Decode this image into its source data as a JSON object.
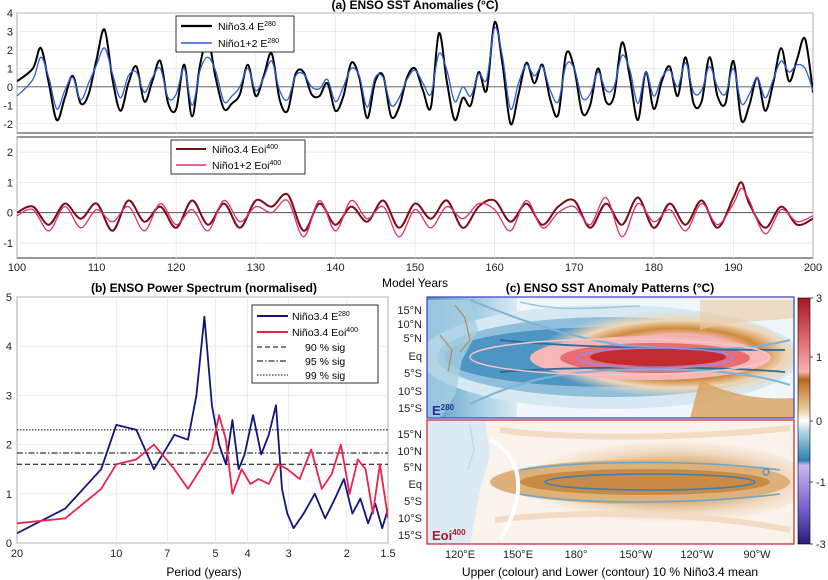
{
  "chart_data": [
    {
      "panel": "a-top",
      "type": "line",
      "title": "(a) ENSO SST Anomalies (°C)",
      "xlim": [
        100,
        200
      ],
      "ylim": [
        -2.5,
        4
      ],
      "yticks": [
        -2,
        -1,
        0,
        1,
        2,
        3,
        4
      ],
      "xticks": [
        100,
        110,
        120,
        130,
        140,
        150,
        160,
        170,
        180,
        190,
        200
      ],
      "grid": true,
      "legend": "top-left",
      "series": [
        {
          "name": "Niño3.4 E",
          "name_sup": "280",
          "color": "#000000",
          "x": [
            100,
            102,
            103,
            104,
            105,
            106,
            107,
            108,
            109,
            110,
            111,
            112,
            113,
            114,
            115,
            116,
            117,
            118,
            119,
            120,
            121,
            122,
            123,
            124,
            125,
            126,
            127,
            128,
            129,
            130,
            131,
            132,
            133,
            134,
            135,
            136,
            137,
            138,
            139,
            140,
            141,
            142,
            143,
            144,
            145,
            146,
            147,
            148,
            149,
            150,
            151,
            152,
            153,
            154,
            155,
            156,
            157,
            158,
            159,
            160,
            161,
            162,
            163,
            164,
            165,
            166,
            167,
            168,
            169,
            170,
            171,
            172,
            173,
            174,
            175,
            176,
            177,
            178,
            179,
            180,
            181,
            182,
            183,
            184,
            185,
            186,
            187,
            188,
            189,
            190,
            191,
            192,
            193,
            194,
            195,
            196,
            197,
            198,
            199,
            200
          ],
          "y": [
            0.3,
            1.0,
            2.1,
            0.2,
            -1.8,
            -0.6,
            0.6,
            -0.9,
            -0.4,
            1.5,
            3.1,
            0.4,
            -1.3,
            0.2,
            1.1,
            -0.8,
            0.3,
            1.4,
            -0.9,
            -1.2,
            1.2,
            -1.6,
            1.2,
            2.5,
            0.4,
            -1.2,
            -0.9,
            -0.4,
            1.2,
            -0.5,
            0.6,
            1.8,
            -0.7,
            -1.3,
            0.7,
            0.8,
            -0.4,
            -0.5,
            0.2,
            -1.3,
            -0.5,
            1.3,
            0.5,
            -1.7,
            0.3,
            0.6,
            -1.6,
            -1.1,
            0.5,
            1.0,
            -0.2,
            -1.1,
            2.9,
            0.3,
            -1.8,
            -0.6,
            -1.0,
            0.8,
            -0.2,
            3.5,
            1.2,
            -2.0,
            -0.4,
            1.3,
            0.2,
            1.2,
            -0.7,
            -1.5,
            1.8,
            1.0,
            -1.4,
            -1.0,
            1.0,
            -0.8,
            -0.5,
            2.4,
            0.5,
            -1.8,
            0.8,
            -1.2,
            0.3,
            1.1,
            -0.5,
            1.6,
            -0.9,
            -0.8,
            1.6,
            -0.5,
            -0.9,
            1.4,
            -1.8,
            -1.0,
            0.5,
            -1.3,
            0.2,
            2.1,
            0.3,
            1.5,
            2.6,
            -0.3
          ]
        },
        {
          "name": "Niño1+2 E",
          "name_sup": "280",
          "color": "#2c5fd6",
          "x": [
            100,
            102,
            103,
            104,
            105,
            106,
            107,
            108,
            109,
            110,
            111,
            112,
            113,
            114,
            115,
            116,
            117,
            118,
            119,
            120,
            121,
            122,
            123,
            124,
            125,
            126,
            127,
            128,
            129,
            130,
            131,
            132,
            133,
            134,
            135,
            136,
            137,
            138,
            139,
            140,
            141,
            142,
            143,
            144,
            145,
            146,
            147,
            148,
            149,
            150,
            151,
            152,
            153,
            154,
            155,
            156,
            157,
            158,
            159,
            160,
            161,
            162,
            163,
            164,
            165,
            166,
            167,
            168,
            169,
            170,
            171,
            172,
            173,
            174,
            175,
            176,
            177,
            178,
            179,
            180,
            181,
            182,
            183,
            184,
            185,
            186,
            187,
            188,
            189,
            190,
            191,
            192,
            193,
            194,
            195,
            196,
            197,
            198,
            199,
            200
          ],
          "y": [
            -0.5,
            0.4,
            1.6,
            0.5,
            -1.2,
            -0.2,
            0.5,
            -0.7,
            0.2,
            1.2,
            2.1,
            0.7,
            -0.6,
            0.6,
            0.8,
            -0.3,
            0.5,
            1.0,
            -0.6,
            -0.4,
            1.0,
            -1.0,
            0.9,
            1.6,
            0.8,
            -0.8,
            -0.5,
            0.0,
            1.0,
            -0.2,
            0.5,
            1.4,
            -0.2,
            -0.7,
            0.6,
            0.7,
            0.0,
            -0.1,
            0.4,
            -0.8,
            0.0,
            1.0,
            0.6,
            -1.1,
            0.5,
            0.5,
            -1.0,
            -0.6,
            0.4,
            0.9,
            0.2,
            -0.4,
            1.8,
            0.9,
            -0.8,
            0.0,
            -0.5,
            0.7,
            0.4,
            3.2,
            1.6,
            -1.2,
            0.2,
            1.2,
            0.6,
            1.1,
            -0.2,
            -0.8,
            1.2,
            1.0,
            -0.6,
            -0.4,
            0.8,
            -0.2,
            0.0,
            1.7,
            0.9,
            -0.9,
            0.8,
            -0.5,
            0.5,
            0.9,
            0.0,
            1.3,
            -0.3,
            -0.2,
            1.1,
            0.0,
            -0.4,
            1.0,
            -0.9,
            -0.4,
            0.5,
            -0.6,
            0.4,
            1.4,
            0.8,
            1.2,
            1.0,
            -0.2
          ]
        }
      ]
    },
    {
      "panel": "a-bottom",
      "type": "line",
      "xlabel": "Model Years",
      "xlim": [
        100,
        200
      ],
      "ylim": [
        -1.5,
        2.5
      ],
      "yticks": [
        -1,
        0,
        1,
        2
      ],
      "xticks": [
        100,
        110,
        120,
        130,
        140,
        150,
        160,
        170,
        180,
        190,
        200
      ],
      "grid": true,
      "legend": "top-center",
      "series": [
        {
          "name": "Niño3.4 Eoi",
          "name_sup": "400",
          "color": "#7a0c12",
          "x": [
            100,
            102,
            104,
            106,
            108,
            110,
            112,
            114,
            116,
            118,
            120,
            122,
            124,
            126,
            128,
            130,
            132,
            134,
            136,
            138,
            140,
            142,
            144,
            146,
            148,
            150,
            152,
            154,
            156,
            158,
            160,
            162,
            164,
            166,
            168,
            170,
            172,
            174,
            176,
            178,
            180,
            182,
            184,
            186,
            188,
            190,
            191,
            192,
            194,
            196,
            198,
            200
          ],
          "y": [
            0.0,
            0.2,
            -0.4,
            0.3,
            -0.2,
            0.3,
            -0.6,
            0.4,
            -0.3,
            0.2,
            -0.5,
            0.4,
            -0.4,
            0.3,
            -0.5,
            0.4,
            0.2,
            0.6,
            -0.6,
            0.3,
            -0.4,
            0.2,
            -0.3,
            0.4,
            -0.5,
            0.3,
            -0.2,
            0.4,
            -0.5,
            0.2,
            0.4,
            -0.3,
            0.3,
            -0.4,
            0.2,
            0.4,
            -0.5,
            0.3,
            -0.4,
            0.5,
            -0.5,
            0.3,
            -0.4,
            0.4,
            -0.5,
            0.5,
            1.0,
            0.3,
            -0.5,
            0.2,
            -0.4,
            -0.2
          ]
        },
        {
          "name": "Niño1+2 Eoi",
          "name_sup": "400",
          "color": "#e0306e",
          "x": [
            100,
            102,
            104,
            106,
            108,
            110,
            112,
            114,
            116,
            118,
            120,
            122,
            124,
            126,
            128,
            130,
            132,
            134,
            136,
            138,
            140,
            142,
            144,
            146,
            148,
            150,
            152,
            154,
            156,
            158,
            160,
            162,
            164,
            166,
            168,
            170,
            172,
            174,
            176,
            178,
            180,
            182,
            184,
            186,
            188,
            190,
            191,
            192,
            194,
            196,
            198,
            200
          ],
          "y": [
            -0.1,
            0.1,
            -0.6,
            0.2,
            -0.5,
            0.1,
            -0.3,
            0.2,
            -0.6,
            0.3,
            -0.4,
            0.1,
            -0.6,
            0.4,
            -0.3,
            0.2,
            0.0,
            0.4,
            -0.8,
            0.4,
            -0.6,
            0.4,
            -0.2,
            0.2,
            -0.8,
            0.1,
            -0.5,
            0.2,
            -0.2,
            0.3,
            0.1,
            -0.6,
            0.4,
            -0.5,
            0.0,
            0.2,
            -0.4,
            0.5,
            -0.8,
            0.3,
            -0.3,
            0.1,
            -0.6,
            0.3,
            -0.4,
            0.3,
            0.8,
            0.4,
            -0.7,
            0.1,
            -0.3,
            -0.1
          ]
        }
      ]
    },
    {
      "panel": "b",
      "type": "line",
      "title": "(b) ENSO Power Spectrum (normalised)",
      "xlabel": "Period (years)",
      "ylim": [
        0,
        5
      ],
      "yticks": [
        0,
        1,
        2,
        3,
        4,
        5
      ],
      "xticks": [
        "20",
        "10",
        "7",
        "5",
        "4",
        "3",
        "2",
        "1.5"
      ],
      "xtick_frequency": [
        0.05,
        0.1,
        0.142857,
        0.2,
        0.25,
        0.333333,
        0.5,
        0.666667
      ],
      "xlim_frequency": [
        0.05,
        0.666667
      ],
      "grid": true,
      "legend": "top-right",
      "series": [
        {
          "name": "Niño3.4 E",
          "name_sup": "280",
          "color": "#14147a",
          "frequency": [
            0.05,
            0.07,
            0.09,
            0.1,
            0.115,
            0.13,
            0.15,
            0.165,
            0.175,
            0.185,
            0.195,
            0.205,
            0.215,
            0.225,
            0.235,
            0.245,
            0.26,
            0.275,
            0.29,
            0.305,
            0.318,
            0.33,
            0.345,
            0.37,
            0.4,
            0.43,
            0.46,
            0.49,
            0.52,
            0.55,
            0.58,
            0.61,
            0.64,
            0.667
          ],
          "y": [
            0.2,
            0.7,
            1.5,
            2.4,
            2.3,
            1.5,
            2.2,
            2.1,
            3.0,
            4.6,
            2.8,
            2.0,
            1.6,
            2.5,
            1.5,
            1.8,
            2.6,
            1.8,
            2.2,
            2.8,
            1.1,
            0.6,
            0.3,
            0.6,
            1.0,
            0.5,
            0.9,
            1.3,
            0.6,
            0.9,
            0.4,
            0.8,
            0.3,
            0.7
          ]
        },
        {
          "name": "Niño3.4 Eoi",
          "name_sup": "400",
          "color": "#e8244f",
          "frequency": [
            0.05,
            0.07,
            0.09,
            0.1,
            0.115,
            0.13,
            0.15,
            0.165,
            0.18,
            0.195,
            0.205,
            0.215,
            0.225,
            0.24,
            0.255,
            0.27,
            0.29,
            0.31,
            0.33,
            0.36,
            0.39,
            0.42,
            0.45,
            0.48,
            0.51,
            0.54,
            0.57,
            0.6,
            0.63,
            0.667
          ],
          "y": [
            0.4,
            0.5,
            1.1,
            1.6,
            1.7,
            2.0,
            1.5,
            1.1,
            1.5,
            1.9,
            2.6,
            2.1,
            1.0,
            1.5,
            1.2,
            1.3,
            1.2,
            1.6,
            1.5,
            1.3,
            1.9,
            1.1,
            1.4,
            2.0,
            1.0,
            1.7,
            1.5,
            0.6,
            1.6,
            0.5
          ]
        }
      ],
      "reference_lines": [
        {
          "label": "90 % sig",
          "value": 1.6,
          "style": "dashed"
        },
        {
          "label": "95 % sig",
          "value": 1.83,
          "style": "dashdot"
        },
        {
          "label": "99 % sig",
          "value": 2.3,
          "style": "dotted"
        }
      ]
    },
    {
      "panel": "c",
      "type": "heatmap",
      "title": "(c) ENSO SST Anomaly Patterns (°C)",
      "xlabel": "Upper (colour) and Lower (contour) 10 % Niño3.4 mean",
      "xticks": [
        "120°E",
        "150°E",
        "180°",
        "150°W",
        "120°W",
        "90°W"
      ],
      "yticks": [
        "15°N",
        "10°N",
        "5°N",
        "Eq",
        "5°S",
        "10°S",
        "15°S"
      ],
      "colorbar_ticks": [
        "3",
        "1",
        "0",
        "-1",
        "-3"
      ],
      "subplots": [
        {
          "label": "E",
          "label_sup": "280",
          "label_color": "#1f2f9a",
          "border_color": "#3d3ac2"
        },
        {
          "label": "Eoi",
          "label_sup": "400",
          "label_color": "#b5122c",
          "border_color": "#c8202a"
        }
      ]
    }
  ]
}
